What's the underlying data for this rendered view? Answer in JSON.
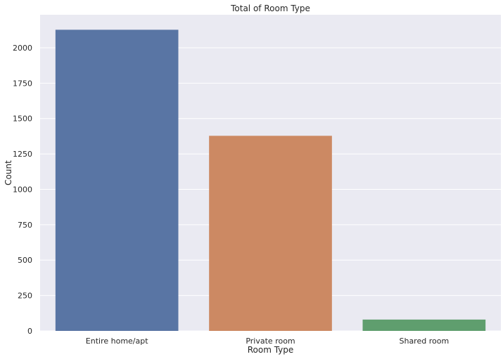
{
  "chart_data": {
    "type": "bar",
    "title": "Total of Room Type",
    "xlabel": "Room Type",
    "ylabel": "Count",
    "categories": [
      "Entire home/apt",
      "Private room",
      "Shared room"
    ],
    "values": [
      2127,
      1378,
      80
    ],
    "colors": [
      "#5975a4",
      "#cc8963",
      "#5f9e6e"
    ],
    "ylim": [
      0,
      2233
    ],
    "yticks": [
      "0",
      "250",
      "500",
      "750",
      "1000",
      "1250",
      "1500",
      "1750",
      "2000"
    ],
    "grid": true,
    "background_color": "#eaeaf2",
    "grid_color": "#ffffff"
  }
}
